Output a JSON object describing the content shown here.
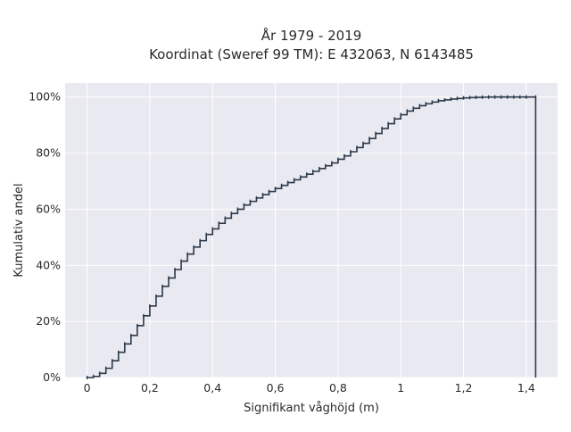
{
  "chart_data": {
    "type": "line",
    "subtype": "step-ecdf",
    "title": [
      "År 1979 - 2019",
      "Koordinat (Sweref 99 TM): E 432063, N 6143485"
    ],
    "xlabel": "Signifikant våghöjd (m)",
    "ylabel": "Kumulativ andel",
    "xlim": [
      -0.07,
      1.5
    ],
    "ylim": [
      0,
      1.05
    ],
    "x_ticks": [
      0,
      0.2,
      0.4,
      0.6,
      0.8,
      1.0,
      1.2,
      1.4
    ],
    "x_tick_labels": [
      "0",
      "0,2",
      "0,4",
      "0,6",
      "0,8",
      "1",
      "1,2",
      "1,4"
    ],
    "y_ticks": [
      0,
      0.2,
      0.4,
      0.6,
      0.8,
      1.0
    ],
    "y_tick_labels": [
      "0%",
      "20%",
      "40%",
      "60%",
      "80%",
      "100%"
    ],
    "grid": true,
    "background": "#e9e9f1",
    "line_color": "#2c3a4a",
    "series": [
      {
        "x": [
          0.0,
          0.02,
          0.04,
          0.06,
          0.08,
          0.1,
          0.12,
          0.14,
          0.16,
          0.18,
          0.2,
          0.22,
          0.24,
          0.26,
          0.28,
          0.3,
          0.32,
          0.34,
          0.36,
          0.38,
          0.4,
          0.42,
          0.44,
          0.46,
          0.48,
          0.5,
          0.52,
          0.54,
          0.56,
          0.58,
          0.6,
          0.62,
          0.64,
          0.66,
          0.68,
          0.7,
          0.72,
          0.74,
          0.76,
          0.78,
          0.8,
          0.82,
          0.84,
          0.86,
          0.88,
          0.9,
          0.92,
          0.94,
          0.96,
          0.98,
          1.0,
          1.02,
          1.04,
          1.06,
          1.08,
          1.1,
          1.12,
          1.14,
          1.16,
          1.18,
          1.2,
          1.22,
          1.24,
          1.26,
          1.28,
          1.3,
          1.32,
          1.34,
          1.36,
          1.38,
          1.4,
          1.43
        ],
        "y": [
          0.0,
          0.004,
          0.015,
          0.033,
          0.06,
          0.09,
          0.12,
          0.15,
          0.185,
          0.22,
          0.255,
          0.29,
          0.325,
          0.355,
          0.385,
          0.415,
          0.44,
          0.465,
          0.488,
          0.51,
          0.53,
          0.55,
          0.568,
          0.585,
          0.6,
          0.615,
          0.628,
          0.64,
          0.652,
          0.663,
          0.674,
          0.685,
          0.695,
          0.705,
          0.715,
          0.725,
          0.735,
          0.745,
          0.755,
          0.765,
          0.778,
          0.79,
          0.805,
          0.82,
          0.835,
          0.852,
          0.87,
          0.888,
          0.905,
          0.922,
          0.937,
          0.95,
          0.96,
          0.969,
          0.976,
          0.982,
          0.987,
          0.99,
          0.993,
          0.995,
          0.997,
          0.998,
          0.999,
          0.9995,
          1.0,
          1.0,
          1.0,
          1.0,
          1.0,
          1.0,
          1.0,
          1.0
        ]
      }
    ]
  }
}
